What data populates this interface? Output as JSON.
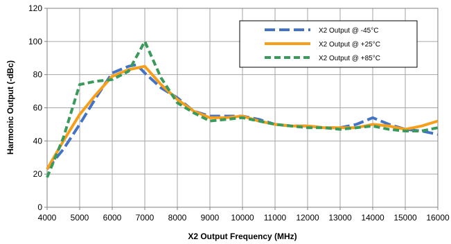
{
  "chart_data": {
    "type": "line",
    "title": "",
    "xlabel": "X2 Output Frequency (MHz)",
    "ylabel": "Harmonic Output (-dBc)",
    "xlim": [
      4000,
      16000
    ],
    "ylim": [
      0,
      120
    ],
    "x_ticks": [
      4000,
      5000,
      6000,
      7000,
      8000,
      9000,
      10000,
      11000,
      12000,
      13000,
      14000,
      15000,
      16000
    ],
    "y_ticks": [
      0,
      20,
      40,
      60,
      80,
      100,
      120
    ],
    "x_tick_labels": [
      "4000",
      "5000",
      "6000",
      "7000",
      "8000",
      "9000",
      "10000",
      "11000",
      "12000",
      "13000",
      "14000",
      "15000",
      "16000"
    ],
    "y_tick_labels": [
      "0",
      "20",
      "40",
      "60",
      "80",
      "100",
      "120"
    ],
    "grid": "major both axes",
    "legend_position": "top-right",
    "series": [
      {
        "name": "X2 Output @ -45°C",
        "color": "#4472C4",
        "dash": "long-dash",
        "x": [
          4000,
          4500,
          5000,
          5500,
          6000,
          6500,
          6750,
          7000,
          7500,
          8000,
          8500,
          9000,
          9500,
          10000,
          10500,
          11000,
          11500,
          12000,
          12500,
          13000,
          13500,
          14000,
          14500,
          15000,
          15500,
          16000
        ],
        "y": [
          23,
          35,
          50,
          66,
          81,
          85,
          86,
          81,
          72,
          66,
          58,
          55,
          55,
          55,
          53,
          50,
          49,
          49,
          48,
          48,
          50,
          54,
          50,
          47,
          46,
          44
        ]
      },
      {
        "name": "X2 Output @ +25°C",
        "color": "#F79E1B",
        "dash": "solid",
        "x": [
          4000,
          4500,
          5000,
          5500,
          6000,
          6500,
          7000,
          7500,
          8000,
          8500,
          9000,
          9500,
          10000,
          10500,
          11000,
          11500,
          12000,
          12500,
          13000,
          13500,
          14000,
          14500,
          15000,
          15500,
          16000
        ],
        "y": [
          23,
          40,
          56,
          68,
          79,
          83,
          85,
          74,
          65,
          58,
          54,
          54,
          55,
          52,
          50,
          49,
          49,
          48,
          48,
          48,
          50,
          49,
          47,
          49,
          52
        ]
      },
      {
        "name": "X2 Output @ +85°C",
        "color": "#3A9A5B",
        "dash": "short-dash",
        "x": [
          4000,
          4500,
          5000,
          5500,
          6000,
          6500,
          7000,
          7500,
          8000,
          8500,
          9000,
          9500,
          10000,
          10500,
          11000,
          11500,
          12000,
          12500,
          13000,
          13500,
          14000,
          14500,
          15000,
          15500,
          16000
        ],
        "y": [
          18,
          42,
          74,
          76,
          77,
          82,
          100,
          78,
          63,
          57,
          52,
          53,
          54,
          52,
          50,
          49,
          48,
          48,
          47,
          48,
          49,
          47,
          46,
          46,
          48
        ]
      }
    ]
  }
}
